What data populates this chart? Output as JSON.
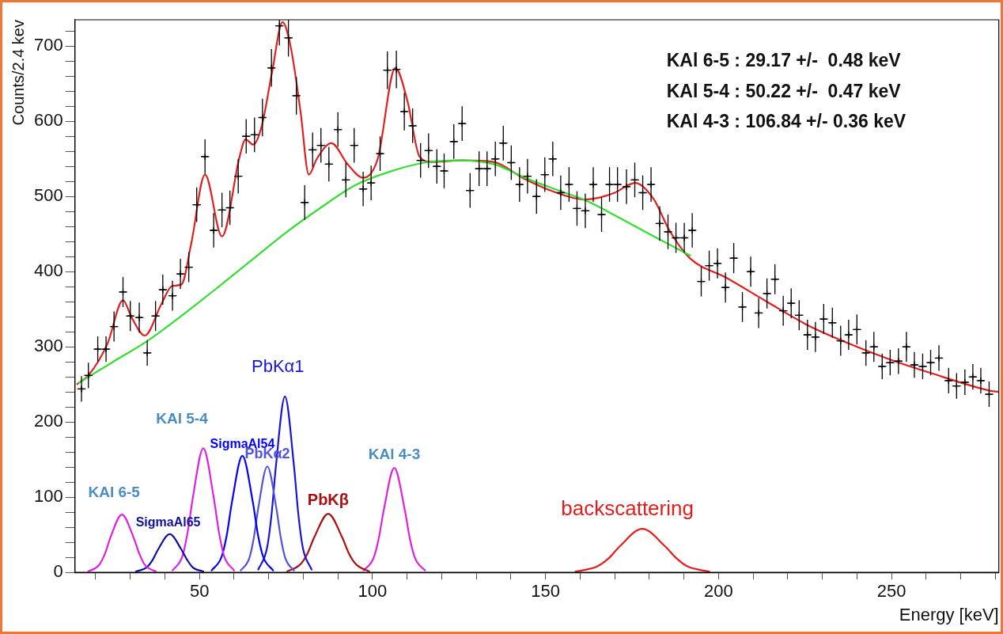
{
  "chart_data": {
    "type": "line",
    "xlabel": "Energy [keV]",
    "ylabel": "Counts/2.4 kev",
    "xlim": [
      14,
      281
    ],
    "ylim": [
      0,
      735
    ],
    "xticks": [
      {
        "value": 20,
        "label": null
      },
      {
        "value": 30,
        "label": null
      },
      {
        "value": 40,
        "label": null
      },
      50,
      {
        "value": 60,
        "label": null
      },
      {
        "value": 70,
        "label": null
      },
      {
        "value": 80,
        "label": null
      },
      {
        "value": 90,
        "label": null
      },
      100,
      {
        "value": 110,
        "label": null
      },
      {
        "value": 120,
        "label": null
      },
      {
        "value": 130,
        "label": null
      },
      {
        "value": 140,
        "label": null
      },
      150,
      {
        "value": 160,
        "label": null
      },
      {
        "value": 170,
        "label": null
      },
      {
        "value": 180,
        "label": null
      },
      {
        "value": 190,
        "label": null
      },
      200,
      {
        "value": 210,
        "label": null
      },
      {
        "value": 220,
        "label": null
      },
      {
        "value": 230,
        "label": null
      },
      {
        "value": 240,
        "label": null
      },
      250,
      {
        "value": 260,
        "label": null
      },
      {
        "value": 270,
        "label": null
      },
      {
        "value": 280,
        "label": null
      }
    ],
    "yticks": [
      0,
      {
        "value": 20,
        "label": null
      },
      {
        "value": 40,
        "label": null
      },
      {
        "value": 60,
        "label": null
      },
      {
        "value": 80,
        "label": null
      },
      100,
      {
        "value": 120,
        "label": null
      },
      {
        "value": 140,
        "label": null
      },
      {
        "value": 160,
        "label": null
      },
      {
        "value": 180,
        "label": null
      },
      200,
      {
        "value": 220,
        "label": null
      },
      {
        "value": 240,
        "label": null
      },
      {
        "value": 260,
        "label": null
      },
      {
        "value": 280,
        "label": null
      },
      300,
      {
        "value": 320,
        "label": null
      },
      {
        "value": 340,
        "label": null
      },
      {
        "value": 360,
        "label": null
      },
      {
        "value": 380,
        "label": null
      },
      400,
      {
        "value": 420,
        "label": null
      },
      {
        "value": 440,
        "label": null
      },
      {
        "value": 460,
        "label": null
      },
      {
        "value": 480,
        "label": null
      },
      500,
      {
        "value": 520,
        "label": null
      },
      {
        "value": 540,
        "label": null
      },
      {
        "value": 560,
        "label": null
      },
      {
        "value": 580,
        "label": null
      },
      600,
      {
        "value": 620,
        "label": null
      },
      {
        "value": 640,
        "label": null
      },
      {
        "value": 660,
        "label": null
      },
      {
        "value": 680,
        "label": null
      },
      700,
      {
        "value": 720,
        "label": null
      }
    ],
    "marker": "none",
    "grid": false,
    "legend": false,
    "series": [
      {
        "type": "scatter",
        "marker": "cross",
        "color": "#000000",
        "x": [
          15.9,
          17.9,
          20.6,
          23.0,
          25.3,
          27.9,
          30.0,
          32.6,
          34.9,
          37.3,
          39.4,
          42.2,
          44.5,
          46.9,
          49.2,
          51.6,
          54.1,
          56.5,
          58.8,
          61.2,
          63.5,
          65.9,
          68.2,
          70.8,
          73.1,
          75.7,
          78.0,
          80.4,
          82.7,
          85.1,
          87.4,
          90.0,
          92.3,
          94.7,
          97.3,
          99.6,
          102.2,
          104.3,
          106.9,
          109.2,
          111.6,
          113.9,
          116.2,
          118.6,
          120.7,
          123.5,
          125.9,
          128.2,
          130.8,
          133.1,
          135.5,
          137.8,
          140.1,
          142.5,
          144.8,
          147.4,
          149.8,
          152.1,
          154.4,
          156.8,
          159.1,
          161.5,
          163.8,
          166.2,
          168.5,
          170.8,
          173.4,
          175.8,
          178.1,
          180.5,
          183.0,
          185.4,
          187.7,
          190.1,
          192.4,
          195.0,
          197.3,
          199.7,
          202.0,
          204.4,
          206.9,
          209.3,
          211.6,
          214.0,
          216.3,
          218.7,
          221.0,
          223.3,
          225.7,
          228.0,
          230.4,
          232.9,
          235.3,
          237.6,
          240.0,
          242.6,
          244.9,
          247.3,
          249.6,
          252.0,
          254.3,
          256.6,
          259.0,
          261.3,
          263.7,
          266.5,
          268.8,
          271.2,
          273.5,
          275.8,
          278.2
        ],
        "values": [
          244,
          262,
          297,
          297,
          327,
          373,
          341,
          339,
          292,
          341,
          376,
          368,
          397,
          406,
          489,
          553,
          455,
          482,
          485,
          527,
          580,
          582,
          605,
          671,
          727,
          711,
          634,
          492,
          562,
          568,
          543,
          589,
          522,
          568,
          510,
          518,
          557,
          668,
          669,
          613,
          594,
          548,
          561,
          540,
          534,
          573,
          597,
          508,
          537,
          537,
          550,
          571,
          545,
          516,
          527,
          500,
          529,
          550,
          505,
          516,
          484,
          481,
          516,
          476,
          516,
          516,
          513,
          522,
          505,
          516,
          464,
          453,
          445,
          445,
          455,
          387,
          408,
          411,
          379,
          418,
          353,
          400,
          345,
          371,
          390,
          348,
          358,
          342,
          316,
          313,
          337,
          332,
          308,
          316,
          323,
          292,
          300,
          274,
          279,
          281,
          300,
          276,
          274,
          279,
          285,
          255,
          248,
          253,
          260,
          255,
          237
        ],
        "errors": [
          17,
          17,
          17,
          17,
          20,
          20,
          20,
          20,
          17,
          20,
          20,
          20,
          20,
          20,
          23,
          23,
          23,
          23,
          23,
          23,
          23,
          23,
          25,
          25,
          [
            701,
            735
          ],
          [
            686,
            735
          ],
          25,
          23,
          23,
          23,
          23,
          23,
          23,
          23,
          23,
          23,
          23,
          25,
          25,
          25,
          23,
          23,
          23,
          23,
          23,
          23,
          23,
          23,
          23,
          23,
          23,
          23,
          23,
          23,
          23,
          23,
          23,
          23,
          23,
          23,
          23,
          23,
          23,
          23,
          23,
          23,
          23,
          23,
          23,
          23,
          23,
          23,
          20,
          20,
          23,
          20,
          20,
          20,
          20,
          20,
          20,
          20,
          20,
          20,
          20,
          20,
          20,
          20,
          20,
          20,
          20,
          20,
          20,
          20,
          20,
          17,
          20,
          17,
          17,
          17,
          20,
          17,
          17,
          17,
          17,
          17,
          17,
          17,
          17,
          17,
          17
        ],
        "xerrors": [
          1.2,
          1.2,
          1.2,
          1.2,
          1.2,
          1.2,
          1.2,
          1.2,
          1.2,
          1.2,
          1.2,
          1.2,
          1.2,
          1.2,
          1.2,
          1.2,
          1.2,
          1.2,
          1.2,
          1.2,
          1.2,
          1.2,
          1.2,
          1.2,
          1.2,
          1.2,
          1.2,
          1.2,
          1.2,
          1.2,
          1.2,
          1.2,
          1.2,
          1.2,
          1.2,
          1.2,
          1.2,
          1.2,
          1.2,
          1.2,
          1.2,
          1.2,
          1.2,
          1.2,
          1.2,
          1.2,
          1.2,
          1.2,
          1.2,
          1.2,
          1.2,
          1.2,
          1.2,
          1.2,
          1.2,
          1.2,
          1.2,
          1.2,
          1.2,
          1.2,
          1.2,
          1.2,
          1.2,
          1.2,
          1.2,
          1.2,
          1.2,
          1.2,
          1.2,
          1.2,
          1.2,
          1.2,
          1.2,
          1.2,
          1.2,
          1.2,
          1.2,
          1.2,
          1.2,
          1.2,
          1.2,
          1.2,
          1.2,
          1.2,
          1.2,
          1.2,
          1.2,
          1.2,
          1.2,
          1.2,
          1.2,
          1.2,
          1.2,
          1.2,
          1.2,
          1.2,
          1.2,
          1.2,
          1.2,
          1.2,
          1.2,
          1.2,
          1.2,
          1.2,
          1.2,
          1.2,
          1.2,
          1.2,
          1.2,
          1.2,
          1.2
        ]
      },
      {
        "color": "#33dd33",
        "x": [
          15,
          25,
          35,
          45,
          55,
          65,
          75,
          85,
          95,
          105,
          115,
          125,
          135,
          145,
          155,
          162,
          170,
          178,
          185,
          192
        ],
        "values": [
          252,
          280,
          308,
          342,
          378,
          415,
          452,
          485,
          515,
          533,
          545,
          548,
          543,
          523,
          506,
          494,
          475,
          455,
          438,
          421
        ]
      },
      {
        "color": "#e02020",
        "x": [
          14.5,
          17.9,
          23.4,
          27.9,
          30.4,
          34.2,
          39.0,
          42.1,
          44.8,
          47.6,
          51.6,
          56.5,
          61.6,
          63.3,
          65.5,
          67.9,
          71.0,
          74.0,
          76.4,
          79.2,
          81.6,
          83.9,
          88.1,
          92.8,
          97.2,
          101.5,
          106.6,
          110.1,
          113.6,
          117.1,
          126,
          135,
          143.7,
          152,
          161.2,
          165,
          170,
          175.9,
          181.2,
          185.8,
          191.7,
          202.2,
          214,
          225.7,
          237.4,
          249.1,
          260.8,
          278.2,
          281
        ],
        "values": [
          250,
          262,
          304,
          362,
          339,
          315,
          357,
          381,
          383,
          437,
          529,
          447,
          553,
          576,
          569,
          592,
          666,
          732,
          698,
          613,
          529,
          550,
          571,
          543,
          525,
          550,
          671,
          627,
          553,
          546,
          548,
          546,
          524,
          507,
          496,
          498,
          505,
          518,
          497,
          455,
          418,
          392,
          360,
          329,
          305,
          284,
          266,
          242,
          240
        ]
      },
      {
        "name": "KAl 6-5",
        "color": "#e020e0",
        "x": [
          17.7,
          21.0,
          22.7,
          24.3,
          27.6,
          30.9,
          32.6,
          34.2,
          37.5
        ],
        "values": [
          1,
          10,
          25,
          47,
          77,
          47,
          25,
          10,
          1
        ]
      },
      {
        "name": "SigmaAl65",
        "color": "#10109c",
        "x": [
          31.5,
          34.8,
          36.5,
          38.1,
          41.4,
          44.7,
          46.4,
          48.0,
          51.3
        ],
        "values": [
          1,
          7,
          17,
          31,
          51,
          31,
          17,
          7,
          1
        ]
      },
      {
        "name": "KAl 5-4",
        "color": "#e020e0",
        "x": [
          42.1,
          45.1,
          46.6,
          48.1,
          51.1,
          54.1,
          55.6,
          57.1,
          60.1
        ],
        "values": [
          2,
          22,
          54,
          100,
          165,
          100,
          54,
          22,
          2
        ]
      },
      {
        "name": "SigmaAl54",
        "color": "#0000ff",
        "x": [
          53.4,
          56.4,
          57.9,
          59.4,
          62.4,
          65.4,
          66.9,
          68.4,
          71.4
        ],
        "values": [
          2,
          21,
          50,
          94,
          155,
          94,
          50,
          21,
          2
        ]
      },
      {
        "name": "PbKα2",
        "color": "#5252dc",
        "x": [
          61.8,
          64.4,
          65.7,
          67.0,
          69.6,
          72.2,
          73.5,
          74.8,
          77.4
        ],
        "values": [
          2,
          19,
          46,
          86,
          141,
          86,
          46,
          19,
          2
        ]
      },
      {
        "name": "PbKα1",
        "color": "#1515d4",
        "x": [
          66.9,
          69.5,
          70.8,
          72.1,
          74.7,
          77.3,
          78.6,
          79.9,
          82.5
        ],
        "values": [
          3,
          32,
          76,
          142,
          234,
          142,
          76,
          32,
          3
        ]
      },
      {
        "name": "PbKβ",
        "color": "#a81010",
        "x": [
          75.2,
          79.2,
          81.2,
          83.2,
          87.2,
          91.2,
          93.2,
          95.2,
          99.2
        ],
        "values": [
          1,
          11,
          25,
          47,
          78,
          47,
          25,
          11,
          1
        ]
      },
      {
        "name": "KAl 4-3",
        "color": "#e020e0",
        "x": [
          97.3,
          100.3,
          101.8,
          103.3,
          106.3,
          109.3,
          110.8,
          112.3,
          115.3
        ],
        "values": [
          2,
          19,
          45,
          84,
          139,
          84,
          45,
          19,
          2
        ]
      },
      {
        "name": "backscattering",
        "color": "#e41c1c",
        "x": [
          158.5,
          165,
          168.3,
          171.5,
          178,
          184.5,
          187.8,
          191,
          197.5
        ],
        "values": [
          1,
          8,
          19,
          35,
          58,
          35,
          19,
          8,
          1
        ]
      }
    ],
    "annotations": [
      "KAl 6-5 : 29.17 +/-  0.48 keV",
      "KAl 5-4 : 50.22 +/-  0.47 keV",
      "KAl 4-3 : 106.84 +/- 0.36 keV"
    ]
  }
}
